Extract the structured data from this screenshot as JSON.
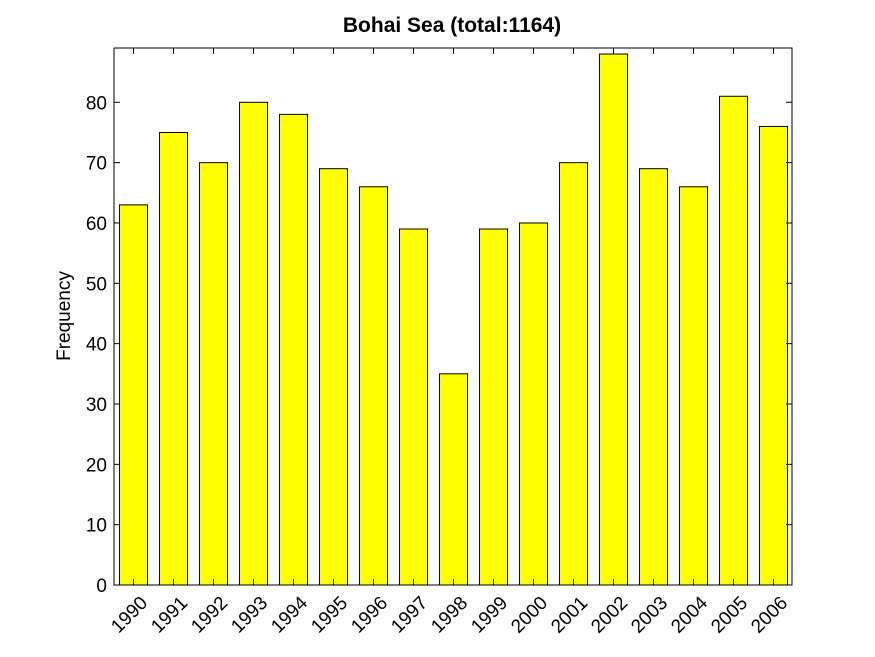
{
  "chart_data": {
    "type": "bar",
    "title": "Bohai Sea  (total:1164)",
    "xlabel": "",
    "ylabel": "Frequency",
    "categories": [
      "1990",
      "1991",
      "1992",
      "1993",
      "1994",
      "1995",
      "1996",
      "1997",
      "1998",
      "1999",
      "2000",
      "2001",
      "2002",
      "2003",
      "2004",
      "2005",
      "2006"
    ],
    "values": [
      63,
      75,
      70,
      80,
      78,
      69,
      66,
      59,
      35,
      59,
      60,
      70,
      88,
      69,
      66,
      81,
      76
    ],
    "ylim": [
      0,
      89
    ],
    "yticks": [
      0,
      10,
      20,
      30,
      40,
      50,
      60,
      70,
      80
    ],
    "grid": false,
    "bar_color": "#ffff00",
    "edge_color": "#000000"
  }
}
